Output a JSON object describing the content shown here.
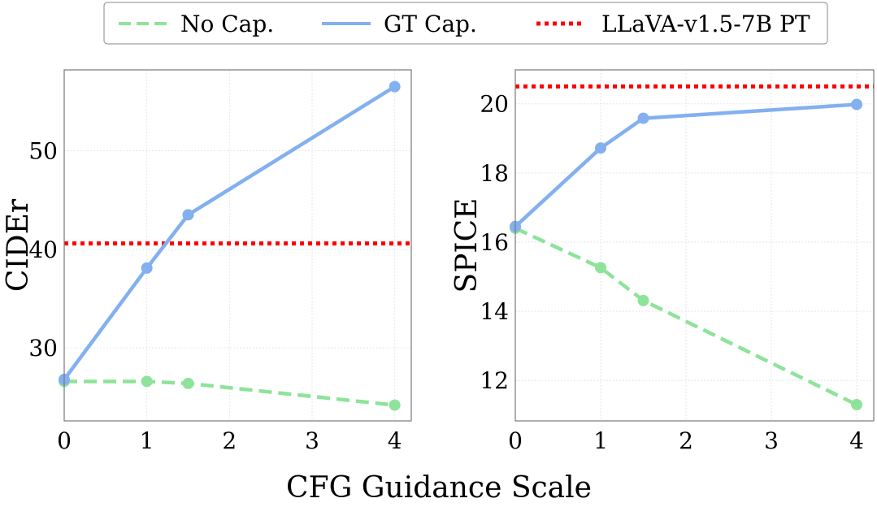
{
  "chart_data": [
    {
      "type": "line",
      "xlabel": "CFG Guidance Scale",
      "ylabel": "CIDEr",
      "xlim": [
        0,
        4.2
      ],
      "ylim": [
        22.6,
        58.2
      ],
      "xticks": [
        0,
        1,
        2,
        3,
        4
      ],
      "yticks": [
        30,
        40,
        50
      ],
      "grid": true,
      "series": [
        {
          "name": "No Cap.",
          "x": [
            0,
            1,
            1.5,
            4
          ],
          "y": [
            26.6,
            26.6,
            26.4,
            24.2
          ],
          "color": "#8ee39a",
          "style": "dashed"
        },
        {
          "name": "GT Cap.",
          "x": [
            0,
            1,
            1.5,
            4
          ],
          "y": [
            26.8,
            38.1,
            43.5,
            56.5
          ],
          "color": "#82b0f0",
          "style": "solid"
        }
      ],
      "hlines": [
        {
          "name": "LLaVA-v1.5-7B PT",
          "y": 40.6,
          "color": "#ff0000",
          "style": "dotted"
        }
      ]
    },
    {
      "type": "line",
      "xlabel": "CFG Guidance Scale",
      "ylabel": "SPICE",
      "xlim": [
        0,
        4.2
      ],
      "ylim": [
        10.83,
        20.98
      ],
      "xticks": [
        0,
        1,
        2,
        3,
        4
      ],
      "yticks": [
        12,
        14,
        16,
        18,
        20
      ],
      "grid": true,
      "series": [
        {
          "name": "No Cap.",
          "x": [
            0,
            1,
            1.5,
            4
          ],
          "y": [
            16.4,
            15.26,
            14.31,
            11.3
          ],
          "color": "#8ee39a",
          "style": "dashed"
        },
        {
          "name": "GT Cap.",
          "x": [
            0,
            1,
            1.5,
            4
          ],
          "y": [
            16.45,
            18.72,
            19.58,
            19.98
          ],
          "color": "#82b0f0",
          "style": "solid"
        }
      ],
      "hlines": [
        {
          "name": "LLaVA-v1.5-7B PT",
          "y": 20.5,
          "color": "#ff0000",
          "style": "dotted"
        }
      ]
    }
  ],
  "legend": {
    "position": "top-center",
    "entries": [
      {
        "label": "No Cap.",
        "color": "#8ee39a",
        "style": "dashed"
      },
      {
        "label": "GT Cap.",
        "color": "#82b0f0",
        "style": "solid"
      },
      {
        "label": "LLaVA-v1.5-7B PT",
        "color": "#ff0000",
        "style": "dotted"
      }
    ]
  },
  "shared_xlabel": "CFG Guidance Scale"
}
